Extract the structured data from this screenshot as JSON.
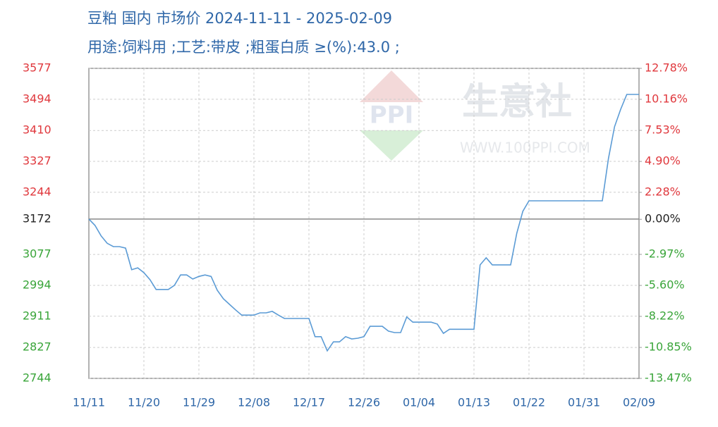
{
  "chart_data": {
    "type": "line",
    "title": "豆粕 国内 市场价 2024-11-11 - 2025-02-09",
    "subtitle": "用途:饲料用 ;工艺:带皮 ;粗蛋白质 ≥(%):43.0 ;",
    "watermark": "生意社",
    "watermark_url": "WWW.100PPI.COM",
    "color": "#5b9bd5",
    "grid": true,
    "tick_colors": {
      "above": "#e0393e",
      "zero": "#222222",
      "below": "#3aa53a"
    },
    "x_label_color": "#2f67a8",
    "categories": [
      "11/11",
      null,
      null,
      null,
      null,
      null,
      null,
      null,
      null,
      "11/20",
      null,
      null,
      null,
      null,
      null,
      null,
      null,
      null,
      "11/29",
      null,
      null,
      null,
      null,
      null,
      null,
      null,
      null,
      "12/08",
      null,
      null,
      null,
      null,
      null,
      null,
      null,
      null,
      "12/17",
      null,
      null,
      null,
      null,
      null,
      null,
      null,
      null,
      "12/26",
      null,
      null,
      null,
      null,
      null,
      null,
      null,
      null,
      "01/04",
      null,
      null,
      null,
      null,
      null,
      null,
      null,
      null,
      "01/13",
      null,
      null,
      null,
      null,
      null,
      null,
      null,
      null,
      "01/22",
      null,
      null,
      null,
      null,
      null,
      null,
      null,
      null,
      "01/31",
      null,
      null,
      null,
      null,
      null,
      null,
      null,
      null,
      "02/09"
    ],
    "values": [
      3172,
      3155,
      3127,
      3107,
      3098,
      3098,
      3094,
      3036,
      3041,
      3028,
      3009,
      2983,
      2983,
      2983,
      2994,
      3022,
      3022,
      3011,
      3018,
      3022,
      3018,
      2981,
      2958,
      2943,
      2928,
      2914,
      2914,
      2914,
      2920,
      2920,
      2924,
      2914,
      2905,
      2905,
      2905,
      2905,
      2905,
      2856,
      2856,
      2818,
      2842,
      2842,
      2856,
      2850,
      2852,
      2856,
      2884,
      2884,
      2884,
      2871,
      2867,
      2867,
      2909,
      2895,
      2895,
      2895,
      2895,
      2890,
      2865,
      2876,
      2876,
      2876,
      2876,
      2876,
      3049,
      3068,
      3049,
      3049,
      3049,
      3049,
      3134,
      3193,
      3221,
      3221,
      3221,
      3221,
      3221,
      3221,
      3221,
      3221,
      3221,
      3221,
      3221,
      3221,
      3221,
      3335,
      3420,
      3467,
      3507,
      3507,
      3507
    ],
    "ylim": [
      2744,
      3577
    ],
    "yticks": [
      3577,
      3494,
      3410,
      3327,
      3244,
      3172,
      3077,
      2994,
      2911,
      2827,
      2744
    ],
    "y2lim": [
      -13.47,
      12.78
    ],
    "y2ticks": [
      {
        "value": 12.78,
        "label": "12.78%"
      },
      {
        "value": 10.16,
        "label": "10.16%"
      },
      {
        "value": 7.53,
        "label": "7.53%"
      },
      {
        "value": 4.9,
        "label": "4.90%"
      },
      {
        "value": 2.28,
        "label": "2.28%"
      },
      {
        "value": 0,
        "label": "0.00%"
      },
      {
        "value": -2.97,
        "label": "-2.97%"
      },
      {
        "value": -5.6,
        "label": "-5.60%"
      },
      {
        "value": -8.22,
        "label": "-8.22%"
      },
      {
        "value": -10.85,
        "label": "-10.85%"
      },
      {
        "value": -13.47,
        "label": "-13.47%"
      }
    ]
  }
}
